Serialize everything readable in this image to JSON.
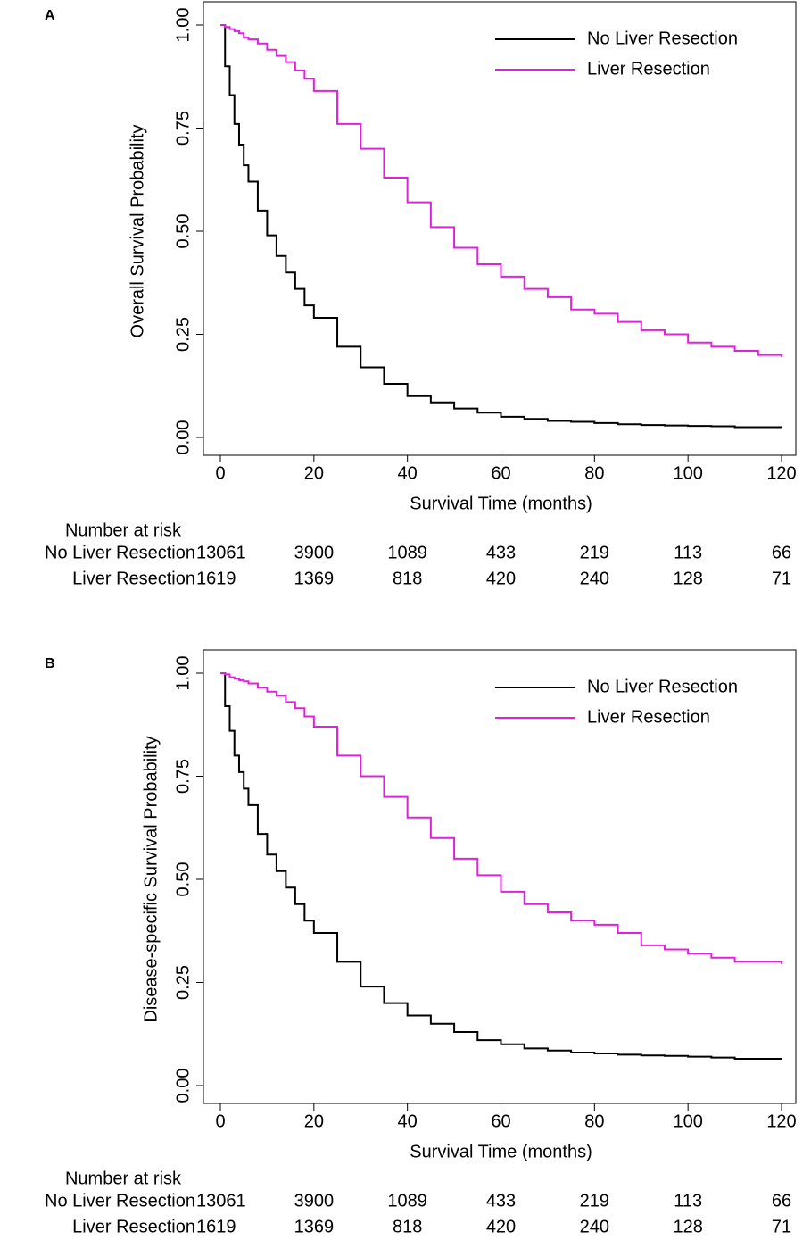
{
  "chart_data": [
    {
      "type": "line",
      "step": true,
      "panel_label": "A",
      "ylabel": "Overall Survival Probability",
      "xlabel": "Survival Time (months)",
      "legend": "topright",
      "x": [
        0,
        1,
        2,
        3,
        4,
        5,
        6,
        8,
        10,
        12,
        14,
        16,
        18,
        20,
        25,
        30,
        35,
        40,
        45,
        50,
        55,
        60,
        65,
        70,
        75,
        80,
        85,
        90,
        95,
        100,
        105,
        110,
        115,
        120
      ],
      "series": [
        {
          "name": "No Liver Resection",
          "color": "#000000",
          "values": [
            1,
            0.9,
            0.83,
            0.76,
            0.71,
            0.66,
            0.62,
            0.55,
            0.49,
            0.44,
            0.4,
            0.36,
            0.32,
            0.29,
            0.22,
            0.17,
            0.13,
            0.1,
            0.085,
            0.07,
            0.06,
            0.05,
            0.045,
            0.04,
            0.038,
            0.035,
            0.032,
            0.03,
            0.029,
            0.028,
            0.027,
            0.025,
            0.025,
            0.025
          ]
        },
        {
          "name": "Liver Resection",
          "color": "#e020e0",
          "values": [
            1,
            0.995,
            0.99,
            0.985,
            0.98,
            0.97,
            0.965,
            0.955,
            0.94,
            0.925,
            0.91,
            0.89,
            0.87,
            0.84,
            0.76,
            0.7,
            0.63,
            0.57,
            0.51,
            0.46,
            0.42,
            0.39,
            0.36,
            0.34,
            0.31,
            0.3,
            0.28,
            0.26,
            0.25,
            0.23,
            0.22,
            0.21,
            0.2,
            0.195
          ]
        }
      ],
      "xlim": [
        0,
        120
      ],
      "ylim": [
        0,
        1
      ],
      "xticks": [
        0,
        20,
        40,
        60,
        80,
        100,
        120
      ],
      "yticks": [
        {
          "value": 0,
          "label": "0.00"
        },
        {
          "value": 0.25,
          "label": "0.25"
        },
        {
          "value": 0.5,
          "label": "0.50"
        },
        {
          "value": 0.75,
          "label": "0.75"
        },
        {
          "value": 1,
          "label": "1.00"
        }
      ],
      "risk_table": {
        "title": "Number at risk",
        "rows": [
          {
            "name": "No Liver Resection",
            "values": [
              13061,
              3900,
              1089,
              433,
              219,
              113,
              66
            ]
          },
          {
            "name": "Liver Resection",
            "values": [
              1619,
              1369,
              818,
              420,
              240,
              128,
              71
            ]
          }
        ]
      }
    },
    {
      "type": "line",
      "step": true,
      "panel_label": "B",
      "ylabel": "Disease-specific Survival Probability",
      "xlabel": "Survival Time (months)",
      "legend": "topright",
      "x": [
        0,
        1,
        2,
        3,
        4,
        5,
        6,
        8,
        10,
        12,
        14,
        16,
        18,
        20,
        25,
        30,
        35,
        40,
        45,
        50,
        55,
        60,
        65,
        70,
        75,
        80,
        85,
        90,
        95,
        100,
        105,
        110,
        115,
        120
      ],
      "series": [
        {
          "name": "No Liver Resection",
          "color": "#000000",
          "values": [
            1,
            0.92,
            0.86,
            0.8,
            0.76,
            0.72,
            0.68,
            0.61,
            0.56,
            0.52,
            0.48,
            0.44,
            0.4,
            0.37,
            0.3,
            0.24,
            0.2,
            0.17,
            0.15,
            0.13,
            0.11,
            0.1,
            0.09,
            0.085,
            0.08,
            0.078,
            0.075,
            0.073,
            0.072,
            0.07,
            0.068,
            0.065,
            0.065,
            0.065
          ]
        },
        {
          "name": "Liver Resection",
          "color": "#e020e0",
          "values": [
            1,
            0.997,
            0.99,
            0.987,
            0.983,
            0.98,
            0.975,
            0.965,
            0.955,
            0.945,
            0.93,
            0.915,
            0.895,
            0.87,
            0.8,
            0.75,
            0.7,
            0.65,
            0.6,
            0.55,
            0.51,
            0.47,
            0.44,
            0.42,
            0.4,
            0.39,
            0.37,
            0.34,
            0.33,
            0.32,
            0.31,
            0.3,
            0.3,
            0.295
          ]
        }
      ],
      "xlim": [
        0,
        120
      ],
      "ylim": [
        0,
        1
      ],
      "xticks": [
        0,
        20,
        40,
        60,
        80,
        100,
        120
      ],
      "yticks": [
        {
          "value": 0,
          "label": "0.00"
        },
        {
          "value": 0.25,
          "label": "0.25"
        },
        {
          "value": 0.5,
          "label": "0.50"
        },
        {
          "value": 0.75,
          "label": "0.75"
        },
        {
          "value": 1,
          "label": "1.00"
        }
      ],
      "risk_table": {
        "title": "Number at risk",
        "rows": [
          {
            "name": "No Liver Resection",
            "values": [
              13061,
              3900,
              1089,
              433,
              219,
              113,
              66
            ]
          },
          {
            "name": "Liver Resection",
            "values": [
              1619,
              1369,
              818,
              420,
              240,
              128,
              71
            ]
          }
        ]
      }
    }
  ]
}
